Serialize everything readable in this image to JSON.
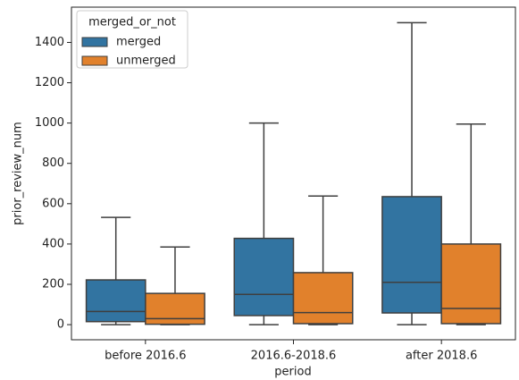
{
  "chart_data": {
    "type": "box",
    "xlabel": "period",
    "ylabel": "prior_review_num",
    "categories": [
      "before 2016.6",
      "2016.6-2018.6",
      "after 2018.6"
    ],
    "legend_title": "merged_or_not",
    "legend": "upper left",
    "ylim": [
      -75,
      1575
    ],
    "yticks": [
      0,
      200,
      400,
      600,
      800,
      1000,
      1200,
      1400
    ],
    "series": [
      {
        "name": "merged",
        "color": "#3274a1",
        "min": [
          0,
          0,
          0
        ],
        "q1": [
          15,
          45,
          58
        ],
        "median": [
          65,
          150,
          210
        ],
        "q3": [
          222,
          428,
          635
        ],
        "max": [
          532,
          1000,
          1498
        ]
      },
      {
        "name": "unmerged",
        "color": "#e1812c",
        "min": [
          0,
          0,
          0
        ],
        "q1": [
          2,
          5,
          5
        ],
        "median": [
          30,
          60,
          80
        ],
        "q3": [
          155,
          258,
          400
        ],
        "max": [
          385,
          638,
          995
        ]
      }
    ]
  }
}
